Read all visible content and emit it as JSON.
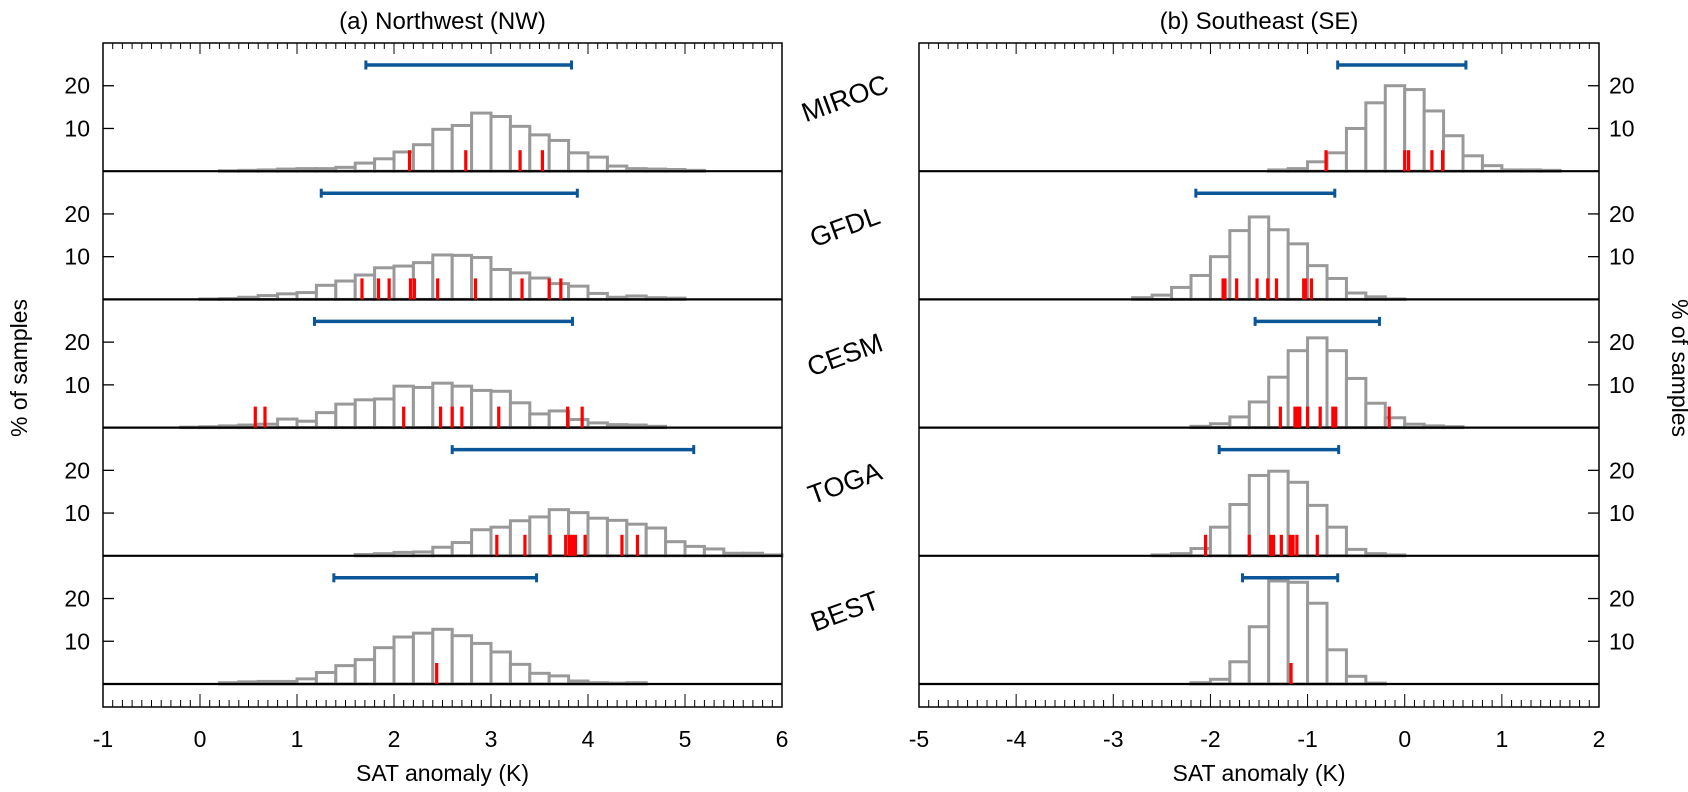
{
  "chart_data": {
    "type": "bar",
    "ylabel": "% of samples",
    "ylim": [
      0,
      30
    ],
    "yticks": [
      10,
      20
    ],
    "bin_width": 0.2,
    "colors": {
      "histogram": "#999999",
      "observed_ticks": "#ff0000",
      "range_bar": "#0a5699",
      "axis": "#000000"
    },
    "models": [
      "MIROC",
      "GFDL",
      "CESM",
      "TOGA",
      "BEST"
    ],
    "panels": [
      {
        "id": "nw",
        "title": "(a) Northwest (NW)",
        "xlabel": "SAT anomaly (K)",
        "xlim": [
          -1,
          6
        ],
        "xticks": [
          -1,
          0,
          1,
          2,
          3,
          4,
          5,
          6
        ],
        "ytick_side": "left",
        "rows": [
          {
            "model": "MIROC",
            "bin_start": 0.2,
            "values": [
              0.1,
              0.2,
              0.3,
              0.5,
              0.6,
              0.6,
              0.9,
              1.9,
              2.9,
              4.5,
              6.2,
              9.8,
              10.7,
              13.6,
              12.8,
              10.5,
              8.5,
              7.2,
              4.3,
              3.3,
              1.2,
              0.6,
              0.5,
              0.4,
              0.2
            ],
            "observed": [
              2.16,
              2.74,
              3.3,
              3.53
            ],
            "range": [
              1.71,
              3.83
            ]
          },
          {
            "model": "GFDL",
            "bin_start": 0.0,
            "values": [
              0.1,
              0.2,
              0.5,
              0.9,
              1.3,
              1.6,
              3.3,
              4.3,
              5.7,
              7.4,
              7.8,
              8.6,
              10.4,
              10.3,
              9.8,
              7.0,
              6.2,
              5.0,
              3.7,
              3.1,
              1.4,
              0.5,
              0.8,
              0.4,
              0.3
            ],
            "observed": [
              1.67,
              1.84,
              1.95,
              2.17,
              2.21,
              2.45,
              2.84,
              3.32,
              3.6,
              3.72
            ],
            "range": [
              1.25,
              3.89
            ]
          },
          {
            "model": "CESM",
            "bin_start": -0.2,
            "values": [
              0.1,
              0.2,
              0.4,
              0.6,
              0.8,
              2.0,
              1.5,
              3.5,
              5.5,
              6.5,
              6.7,
              9.7,
              9.4,
              10.4,
              9.7,
              8.7,
              8.5,
              5.8,
              3.2,
              3.9,
              1.9,
              1.1,
              0.7,
              0.6,
              0.3
            ],
            "observed": [
              0.57,
              0.67,
              2.1,
              2.48,
              2.6,
              2.7,
              3.08,
              3.79,
              3.94
            ],
            "range": [
              1.18,
              3.84
            ]
          },
          {
            "model": "TOGA",
            "bin_start": 1.6,
            "values": [
              0.3,
              0.5,
              0.8,
              0.9,
              2.0,
              3.1,
              6.1,
              6.7,
              8.2,
              9.1,
              10.8,
              10.1,
              8.8,
              8.3,
              7.4,
              6.5,
              3.3,
              2.2,
              1.6,
              0.6,
              0.6,
              0.2
            ],
            "observed": [
              3.06,
              3.35,
              3.61,
              3.77,
              3.81,
              3.84,
              3.87,
              3.97,
              4.35,
              4.51
            ],
            "range": [
              2.6,
              5.09
            ]
          },
          {
            "model": "BEST",
            "bin_start": 0.2,
            "values": [
              0.3,
              0.5,
              0.6,
              0.6,
              1.2,
              2.7,
              4.3,
              5.7,
              8.5,
              11.0,
              11.9,
              12.8,
              11.3,
              9.5,
              7.5,
              4.6,
              2.5,
              1.9,
              0.7,
              0.3,
              0.2,
              0.3
            ],
            "observed": [
              2.44
            ],
            "range": [
              1.38,
              3.47
            ]
          }
        ]
      },
      {
        "id": "se",
        "title": "(b) Southeast (SE)",
        "xlabel": "SAT anomaly (K)",
        "xlim": [
          -5,
          2
        ],
        "xticks": [
          -5,
          -4,
          -3,
          -2,
          -1,
          0,
          1,
          2
        ],
        "ytick_side": "right",
        "rows": [
          {
            "model": "MIROC",
            "bin_start": -1.4,
            "values": [
              0.3,
              0.6,
              2.2,
              4.3,
              10.0,
              16.0,
              20.0,
              19.1,
              14.1,
              8.3,
              3.6,
              1.3,
              0.3,
              0.3,
              0.2
            ],
            "observed": [
              -0.81,
              0.0,
              0.04,
              0.28,
              0.39
            ],
            "range": [
              -0.69,
              0.63
            ]
          },
          {
            "model": "GFDL",
            "bin_start": -2.8,
            "values": [
              0.4,
              1.0,
              2.8,
              5.6,
              10.0,
              16.1,
              19.3,
              16.3,
              13.0,
              7.9,
              4.9,
              1.5,
              0.6,
              0.1
            ],
            "observed": [
              -1.87,
              -1.85,
              -1.73,
              -1.52,
              -1.41,
              -1.32,
              -1.04,
              -1.02,
              -0.96
            ],
            "range": [
              -2.15,
              -0.72
            ]
          },
          {
            "model": "CESM",
            "bin_start": -2.2,
            "values": [
              0.3,
              0.9,
              2.5,
              6.0,
              11.8,
              18.0,
              21.0,
              18.0,
              11.5,
              5.7,
              2.3,
              0.8,
              0.4,
              0.2
            ],
            "observed": [
              -1.28,
              -1.13,
              -1.1,
              -1.08,
              -1.0,
              -0.87,
              -0.74,
              -0.71,
              -0.16
            ],
            "range": [
              -1.54,
              -0.26
            ]
          },
          {
            "model": "TOGA",
            "bin_start": -2.6,
            "values": [
              0.2,
              0.5,
              1.7,
              6.7,
              12.0,
              18.8,
              19.8,
              17.2,
              11.8,
              6.7,
              1.5,
              0.5,
              0.2
            ],
            "observed": [
              -2.05,
              -1.6,
              -1.38,
              -1.35,
              -1.27,
              -1.18,
              -1.15,
              -1.11,
              -0.9
            ],
            "range": [
              -1.91,
              -0.68
            ]
          },
          {
            "model": "BEST",
            "bin_start": -2.2,
            "values": [
              0.3,
              1.1,
              5.2,
              13.4,
              24.1,
              23.8,
              18.9,
              8.0,
              1.8,
              0.2
            ],
            "observed": [
              -1.17
            ],
            "range": [
              -1.67,
              -0.69
            ]
          }
        ]
      }
    ]
  }
}
